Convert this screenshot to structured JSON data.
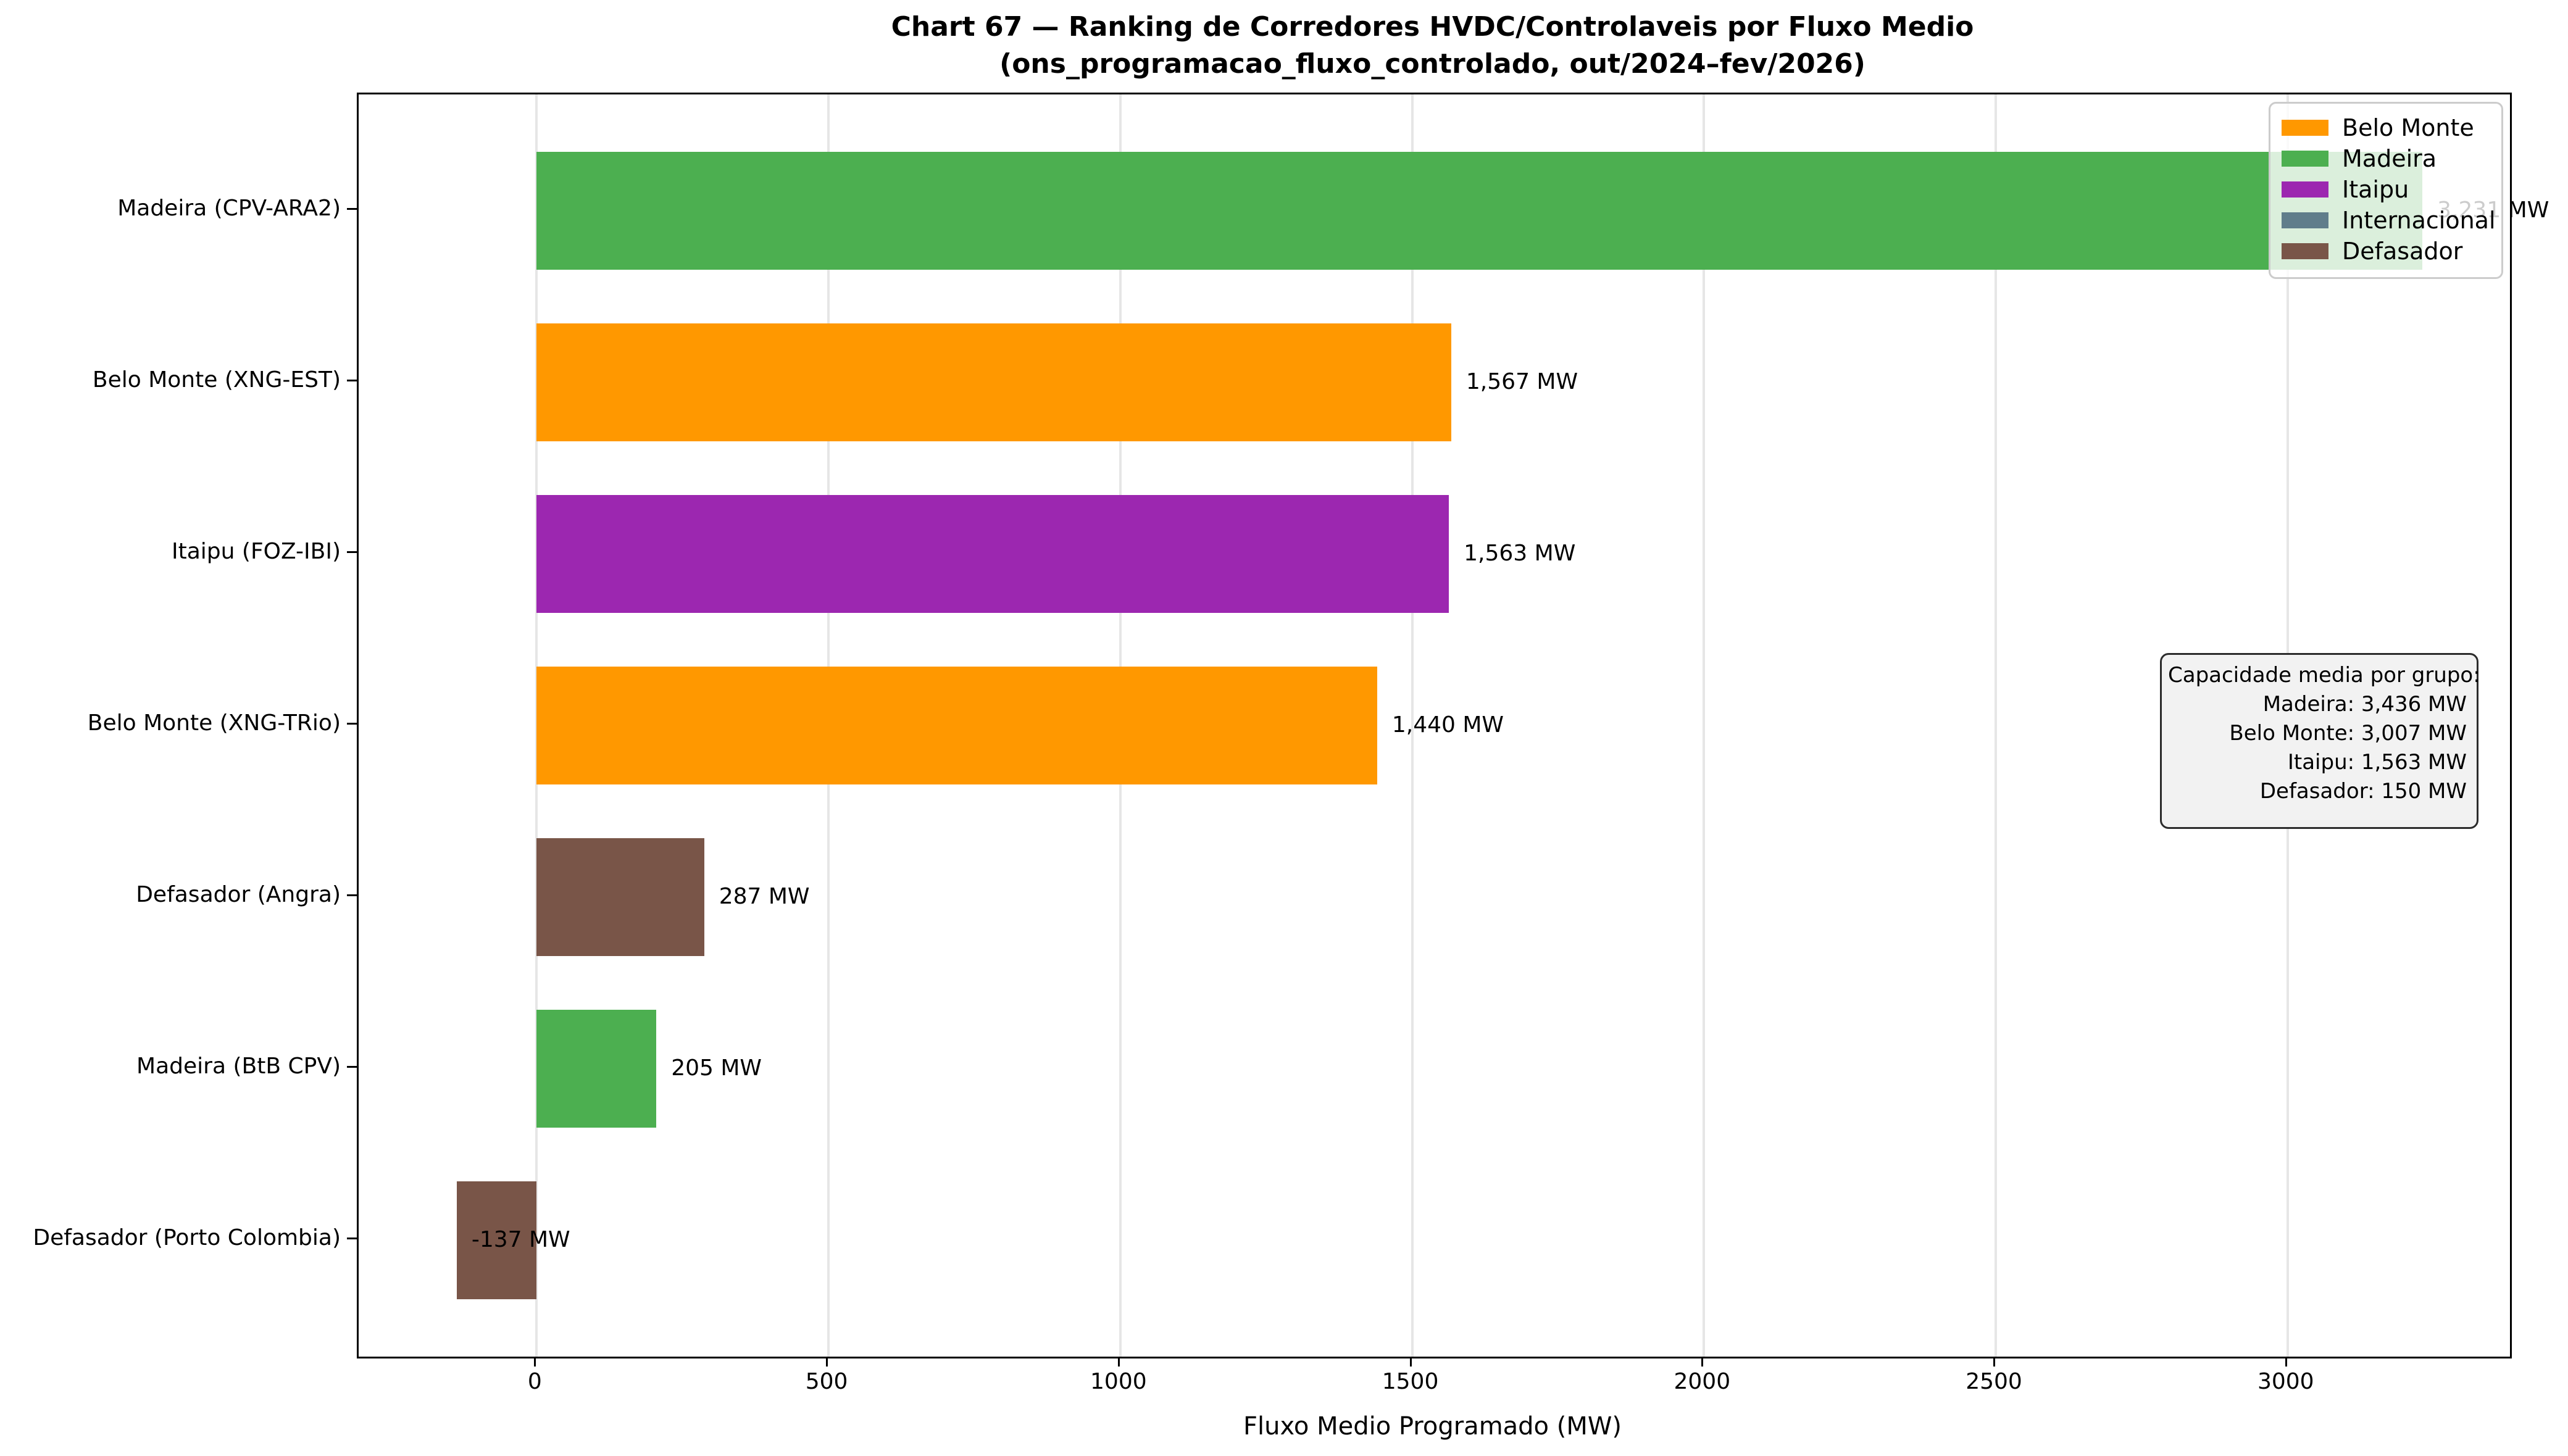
{
  "title_line1": "Chart 67 — Ranking de Corredores HVDC/Controlaveis por Fluxo Medio",
  "title_line2": "(ons_programacao_fluxo_controlado, out/2024–fev/2026)",
  "chart_data": {
    "type": "bar",
    "orientation": "horizontal",
    "title": "Chart 67 — Ranking de Corredores HVDC/Controlaveis por Fluxo Medio",
    "subtitle": "(ons_programacao_fluxo_controlado, out/2024–fev/2026)",
    "xlabel": "Fluxo Medio Programado (MW)",
    "ylabel": "",
    "xlim": [
      -305,
      3381
    ],
    "xticks": [
      0,
      500,
      1000,
      1500,
      2000,
      2500,
      3000
    ],
    "xtick_labels": [
      "0",
      "500",
      "1000",
      "1500",
      "2000",
      "2500",
      "3000"
    ],
    "grid": "vertical-only",
    "legend_position": "upper-right",
    "categories": [
      "Madeira (CPV-ARA2)",
      "Belo Monte (XNG-EST)",
      "Itaipu (FOZ-IBI)",
      "Belo Monte (XNG-TRio)",
      "Defasador (Angra)",
      "Madeira (BtB CPV)",
      "Defasador (Porto Colombia)"
    ],
    "groups": [
      "Madeira",
      "Belo Monte",
      "Itaipu",
      "Belo Monte",
      "Defasador",
      "Madeira",
      "Defasador"
    ],
    "values": [
      3231,
      1567,
      1563,
      1440,
      287,
      205,
      -137
    ],
    "value_labels": [
      "3,231 MW",
      "1,567 MW",
      "1,563 MW",
      "1,440 MW",
      "287 MW",
      "205 MW",
      "-137 MW"
    ],
    "group_colors": {
      "Belo Monte": "#FF9800",
      "Madeira": "#4CAF50",
      "Itaipu": "#9C27B0",
      "Internacional": "#607D8B",
      "Defasador": "#795548"
    },
    "legend_entries": [
      "Belo Monte",
      "Madeira",
      "Itaipu",
      "Internacional",
      "Defasador"
    ],
    "annotation": {
      "lines": [
        "Capacidade media por grupo:",
        "Madeira: 3,436 MW",
        "Belo Monte: 3,007 MW",
        "Itaipu: 1,563 MW",
        "Defasador: 150 MW"
      ]
    }
  }
}
